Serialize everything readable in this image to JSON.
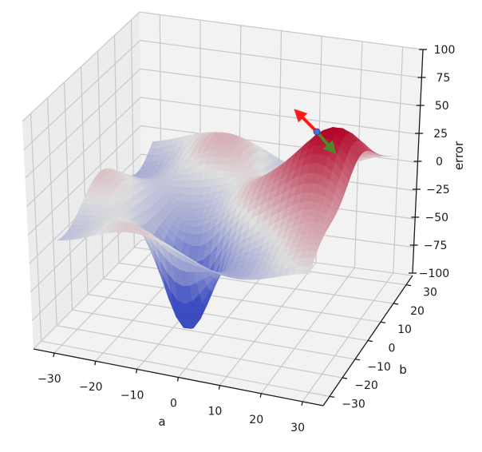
{
  "chart_data": {
    "type": "surface3d",
    "title": "",
    "xlabel": "a",
    "ylabel": "b",
    "zlabel": "error",
    "xlim": [
      -35,
      35
    ],
    "ylim": [
      -35,
      35
    ],
    "zlim": [
      -100,
      100
    ],
    "xticks": [
      -30,
      -20,
      -10,
      0,
      10,
      20,
      30
    ],
    "yticks": [
      -30,
      -20,
      -10,
      0,
      10,
      20,
      30
    ],
    "zticks": [
      -100,
      -75,
      -50,
      -25,
      0,
      25,
      50,
      75,
      100
    ],
    "xtick_labels": [
      "−30",
      "−20",
      "−10",
      "0",
      "10",
      "20",
      "30"
    ],
    "ytick_labels": [
      "−30",
      "−20",
      "−10",
      "0",
      "10",
      "20",
      "30"
    ],
    "ztick_labels": [
      "−100",
      "−75",
      "−50",
      "−25",
      "0",
      "25",
      "50",
      "75",
      "100"
    ],
    "colormap": "coolwarm",
    "grid": true,
    "surface_features": [
      {
        "kind": "peak",
        "a": 25,
        "b": 5,
        "error": 75,
        "description": "red maximum, upper right"
      },
      {
        "kind": "valley",
        "a": -5,
        "b": -15,
        "error": -85,
        "description": "blue minimum, front center"
      },
      {
        "kind": "ridge",
        "a": -25,
        "b": 10,
        "error": 10,
        "description": "light wavy shoulder on left"
      }
    ],
    "point": {
      "a": 22,
      "b": 10,
      "error": 45,
      "color": "#4a6fd1"
    },
    "arrows": [
      {
        "name": "gradient-ascent",
        "color": "#ff1a1a",
        "direction": "uphill"
      },
      {
        "name": "gradient-descent",
        "color": "#4f8a2a",
        "direction": "downhill"
      }
    ]
  },
  "colors": {
    "pane": "#f2f2f2",
    "grid": "#c8c8c8",
    "axis": "#1a1a1a",
    "cmap_low": "#3b4cc0",
    "cmap_mid": "#dddddd",
    "cmap_high": "#b40426"
  }
}
